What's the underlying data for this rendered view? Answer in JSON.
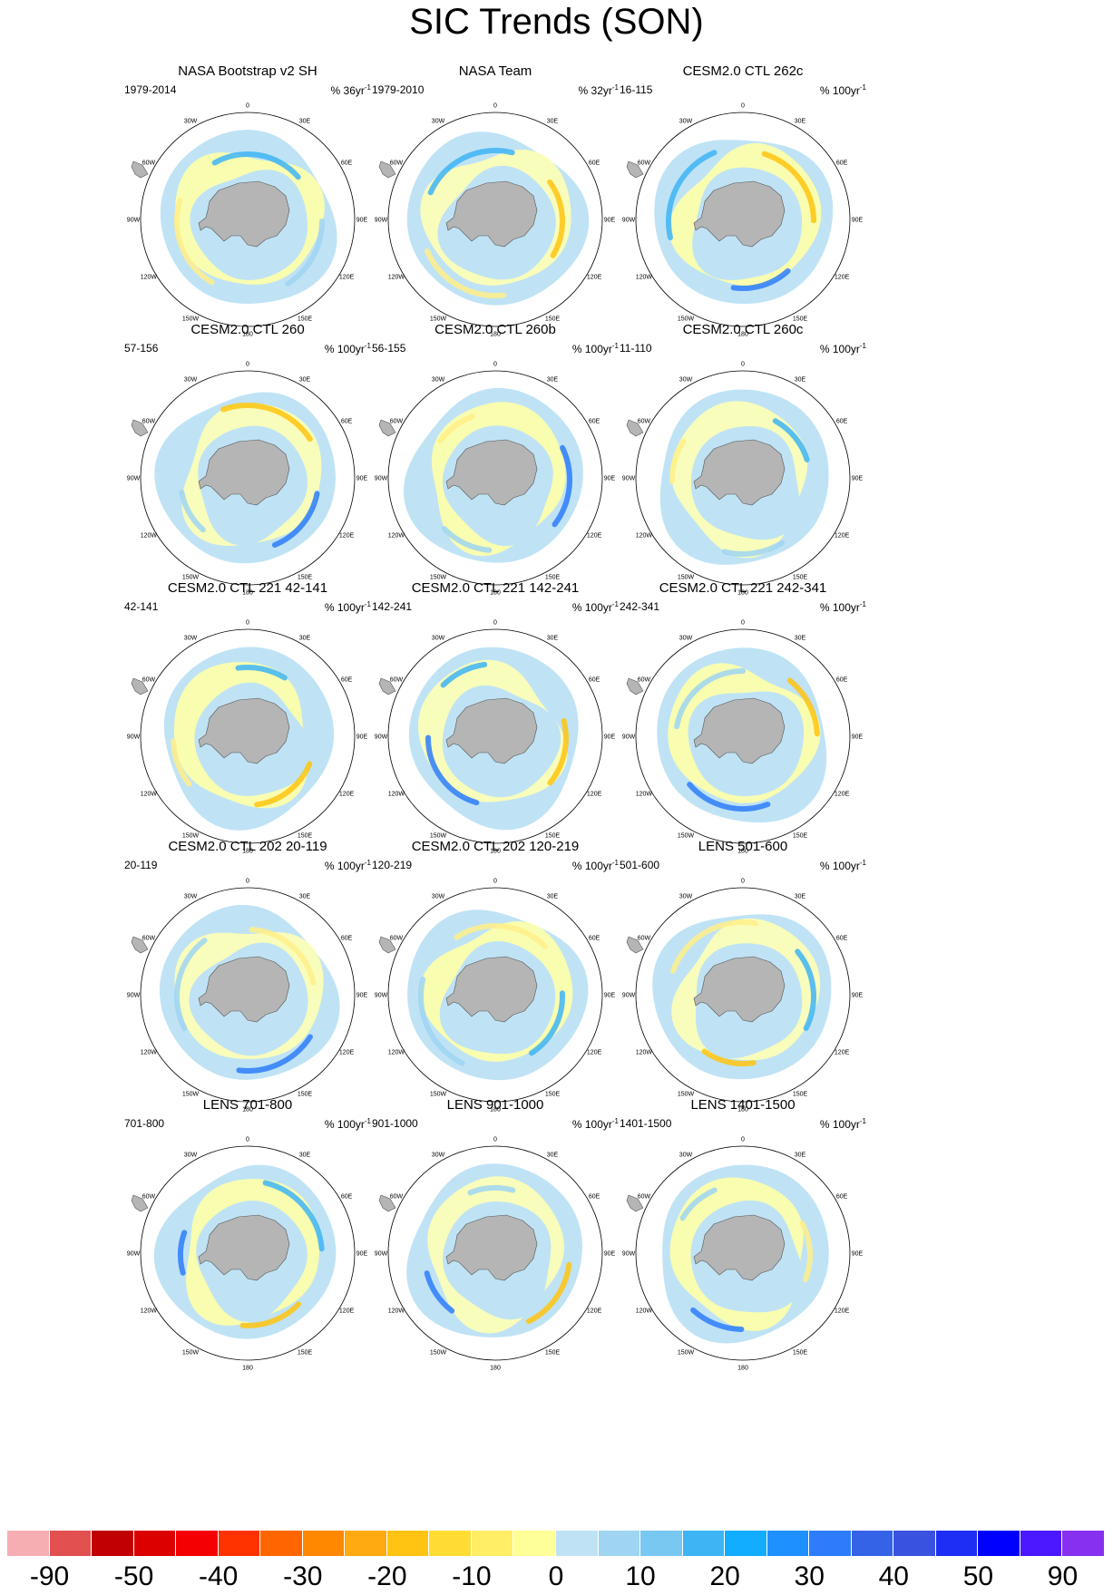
{
  "title": "SIC Trends (SON)",
  "lon_labels": [
    "0",
    "30E",
    "60E",
    "90E",
    "120E",
    "150E",
    "180",
    "150W",
    "120W",
    "90W",
    "60W",
    "30W"
  ],
  "panels": [
    {
      "title": "NASA Bootstrap v2 SH",
      "period": "1979-2014",
      "units": "% 36yr",
      "units_sup": "-1"
    },
    {
      "title": "NASA Team",
      "period": "1979-2010",
      "units": "% 32yr",
      "units_sup": "-1"
    },
    {
      "title": "CESM2.0 CTL 262c",
      "period": "16-115",
      "units": "% 100yr",
      "units_sup": "-1"
    },
    {
      "title": "CESM2.0 CTL 260",
      "period": "57-156",
      "units": "% 100yr",
      "units_sup": "-1"
    },
    {
      "title": "CESM2.0 CTL 260b",
      "period": "56-155",
      "units": "% 100yr",
      "units_sup": "-1"
    },
    {
      "title": "CESM2.0 CTL 260c",
      "period": "11-110",
      "units": "% 100yr",
      "units_sup": "-1"
    },
    {
      "title": "CESM2.0 CTL 221 42-141",
      "period": "42-141",
      "units": "% 100yr",
      "units_sup": "-1"
    },
    {
      "title": "CESM2.0 CTL 221 142-241",
      "period": "142-241",
      "units": "% 100yr",
      "units_sup": "-1"
    },
    {
      "title": "CESM2.0 CTL 221 242-341",
      "period": "242-341",
      "units": "% 100yr",
      "units_sup": "-1"
    },
    {
      "title": "CESM2.0 CTL 202 20-119",
      "period": "20-119",
      "units": "% 100yr",
      "units_sup": "-1"
    },
    {
      "title": "CESM2.0 CTL 202 120-219",
      "period": "120-219",
      "units": "% 100yr",
      "units_sup": "-1"
    },
    {
      "title": "LENS 501-600",
      "period": "501-600",
      "units": "% 100yr",
      "units_sup": "-1"
    },
    {
      "title": "LENS 701-800",
      "period": "701-800",
      "units": "% 100yr",
      "units_sup": "-1"
    },
    {
      "title": "LENS 901-1000",
      "period": "901-1000",
      "units": "% 100yr",
      "units_sup": "-1"
    },
    {
      "title": "LENS 1401-1500",
      "period": "1401-1500",
      "units": "% 100yr",
      "units_sup": "-1"
    }
  ],
  "colorbar": {
    "colors": [
      "#f7aeb3",
      "#e25050",
      "#c00000",
      "#dd0000",
      "#f50000",
      "#ff3300",
      "#ff6600",
      "#ff8800",
      "#ffaa11",
      "#ffc411",
      "#ffdd33",
      "#ffee66",
      "#ffff99",
      "#bfe3f5",
      "#9fd5f2",
      "#78c8f2",
      "#3eb4f5",
      "#12adff",
      "#1e90ff",
      "#2d7cfa",
      "#3563e8",
      "#3a52e0",
      "#1e2ef5",
      "#0000ff",
      "#4c18ff",
      "#8830f0"
    ],
    "labels": [
      "-90",
      "-50",
      "-40",
      "-30",
      "-20",
      "-10",
      "0",
      "10",
      "20",
      "30",
      "40",
      "50",
      "90"
    ]
  }
}
